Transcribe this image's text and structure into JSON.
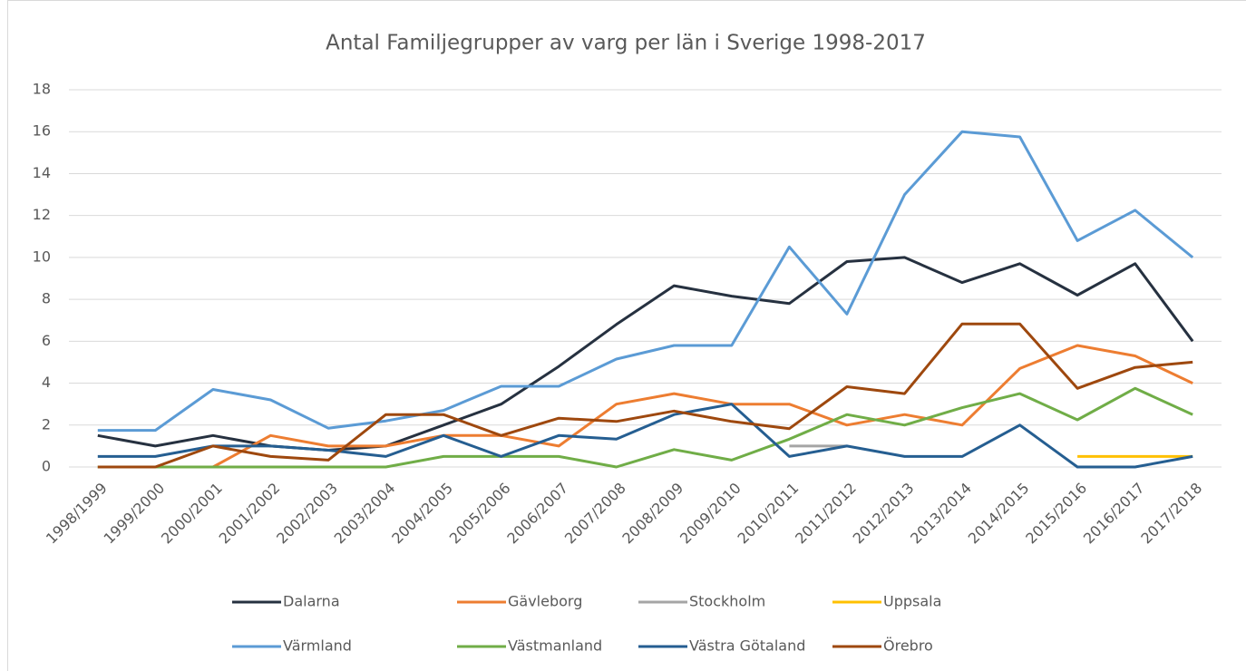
{
  "chart_data": {
    "type": "line",
    "title": "Antal Familjegrupper av varg per län i Sverige 1998-2017",
    "categories": [
      "1998/1999",
      "1999/2000",
      "2000/2001",
      "2001/2002",
      "2002/2003",
      "2003/2004",
      "2004/2005",
      "2005/2006",
      "2006/2007",
      "2007/2008",
      "2008/2009",
      "2009/2010",
      "2010/2011",
      "2011/2012",
      "2012/2013",
      "2013/2014",
      "2014/2015",
      "2015/2016",
      "2016/2017",
      "2017/2018"
    ],
    "series": [
      {
        "name": "Dalarna",
        "color": "#263140",
        "values": [
          1.5,
          1,
          1.5,
          1,
          0.8,
          1,
          2,
          3,
          4.8,
          6.8,
          8.65,
          8.15,
          7.8,
          9.8,
          10,
          8.8,
          9.7,
          8.2,
          9.7,
          6
        ]
      },
      {
        "name": "Gävleborg",
        "color": "#ed7d31",
        "values": [
          null,
          null,
          0,
          1.5,
          1,
          1,
          1.5,
          1.5,
          1,
          3,
          3.5,
          3,
          3,
          2,
          2.5,
          2,
          4.7,
          5.8,
          5.3,
          4
        ]
      },
      {
        "name": "Stockholm",
        "color": "#a5a5a5",
        "values": [
          null,
          null,
          null,
          null,
          null,
          null,
          null,
          null,
          null,
          null,
          null,
          null,
          1,
          1,
          null,
          null,
          null,
          null,
          null,
          null
        ]
      },
      {
        "name": "Uppsala",
        "color": "#ffc000",
        "values": [
          null,
          null,
          null,
          null,
          null,
          null,
          null,
          null,
          null,
          null,
          null,
          null,
          null,
          null,
          null,
          null,
          null,
          0.5,
          0.5,
          0.5
        ]
      },
      {
        "name": "Värmland",
        "color": "#5b9bd5",
        "values": [
          1.75,
          1.75,
          3.7,
          3.2,
          1.85,
          2.2,
          2.7,
          3.85,
          3.85,
          5.15,
          5.8,
          5.8,
          10.5,
          7.3,
          13,
          16,
          15.75,
          10.8,
          12.25,
          10
        ]
      },
      {
        "name": "Västmanland",
        "color": "#70ad47",
        "values": [
          0,
          0,
          0,
          0,
          0,
          0,
          0.5,
          0.5,
          0.5,
          0,
          0.83,
          0.33,
          1.33,
          2.5,
          2,
          2.83,
          3.5,
          2.25,
          3.75,
          2.5
        ]
      },
      {
        "name": "Västra Götaland",
        "color": "#255e91",
        "values": [
          0.5,
          0.5,
          1,
          1,
          0.8,
          0.5,
          1.5,
          0.5,
          1.5,
          1.33,
          2.5,
          3,
          0.5,
          1,
          0.5,
          0.5,
          2,
          0,
          0,
          0.5
        ]
      },
      {
        "name": "Örebro",
        "color": "#9e480e",
        "values": [
          0,
          0,
          1,
          0.5,
          0.33,
          2.5,
          2.5,
          1.5,
          2.33,
          2.17,
          2.67,
          2.17,
          1.83,
          3.83,
          3.5,
          6.83,
          6.83,
          3.75,
          4.75,
          5
        ]
      }
    ],
    "ylim": [
      0,
      18
    ],
    "yticks": [
      0,
      2,
      4,
      6,
      8,
      10,
      12,
      14,
      16,
      18
    ],
    "grid": true
  }
}
